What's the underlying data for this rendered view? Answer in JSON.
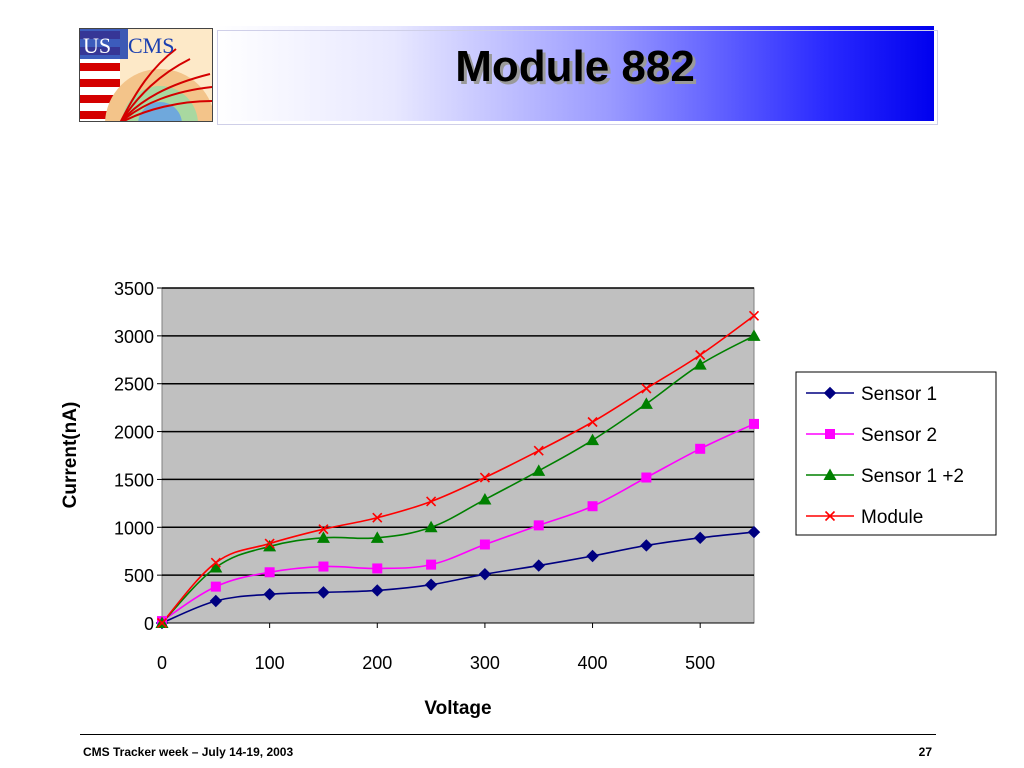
{
  "slide": {
    "title": "Module 882",
    "logo_text": "US CMS",
    "footer_left": "CMS Tracker week – July 14-19, 2003",
    "page_number": "27"
  },
  "colors": {
    "plot_background": "#c0c0c0",
    "header_gradient_end": "#0000ee"
  },
  "chart_data": {
    "type": "line",
    "title": "",
    "xlabel": "Voltage",
    "ylabel": "Current(nA)",
    "xlim": [
      0,
      550
    ],
    "ylim": [
      0,
      3500
    ],
    "x_ticks": [
      0,
      100,
      200,
      300,
      400,
      500
    ],
    "y_ticks": [
      0,
      500,
      1000,
      1500,
      2000,
      2500,
      3000,
      3500
    ],
    "grid": "horizontal",
    "legend_position": "right",
    "x": [
      0,
      50,
      100,
      150,
      200,
      250,
      300,
      350,
      400,
      450,
      500,
      550
    ],
    "series": [
      {
        "name": "Sensor 1",
        "color": "#000080",
        "marker": "diamond",
        "values": [
          0,
          230,
          300,
          320,
          340,
          400,
          510,
          600,
          700,
          810,
          890,
          950
        ]
      },
      {
        "name": "Sensor 2",
        "color": "#ff00ff",
        "marker": "square",
        "values": [
          20,
          380,
          530,
          590,
          570,
          610,
          820,
          1020,
          1220,
          1520,
          1820,
          2080
        ]
      },
      {
        "name": "Sensor 1 +2",
        "color": "#008000",
        "marker": "triangle",
        "values": [
          0,
          580,
          800,
          890,
          890,
          1000,
          1290,
          1590,
          1910,
          2290,
          2700,
          3000
        ]
      },
      {
        "name": "Module",
        "color": "#ff0000",
        "marker": "x",
        "values": [
          0,
          630,
          830,
          980,
          1100,
          1270,
          1520,
          1800,
          2100,
          2450,
          2800,
          3210
        ]
      }
    ]
  }
}
